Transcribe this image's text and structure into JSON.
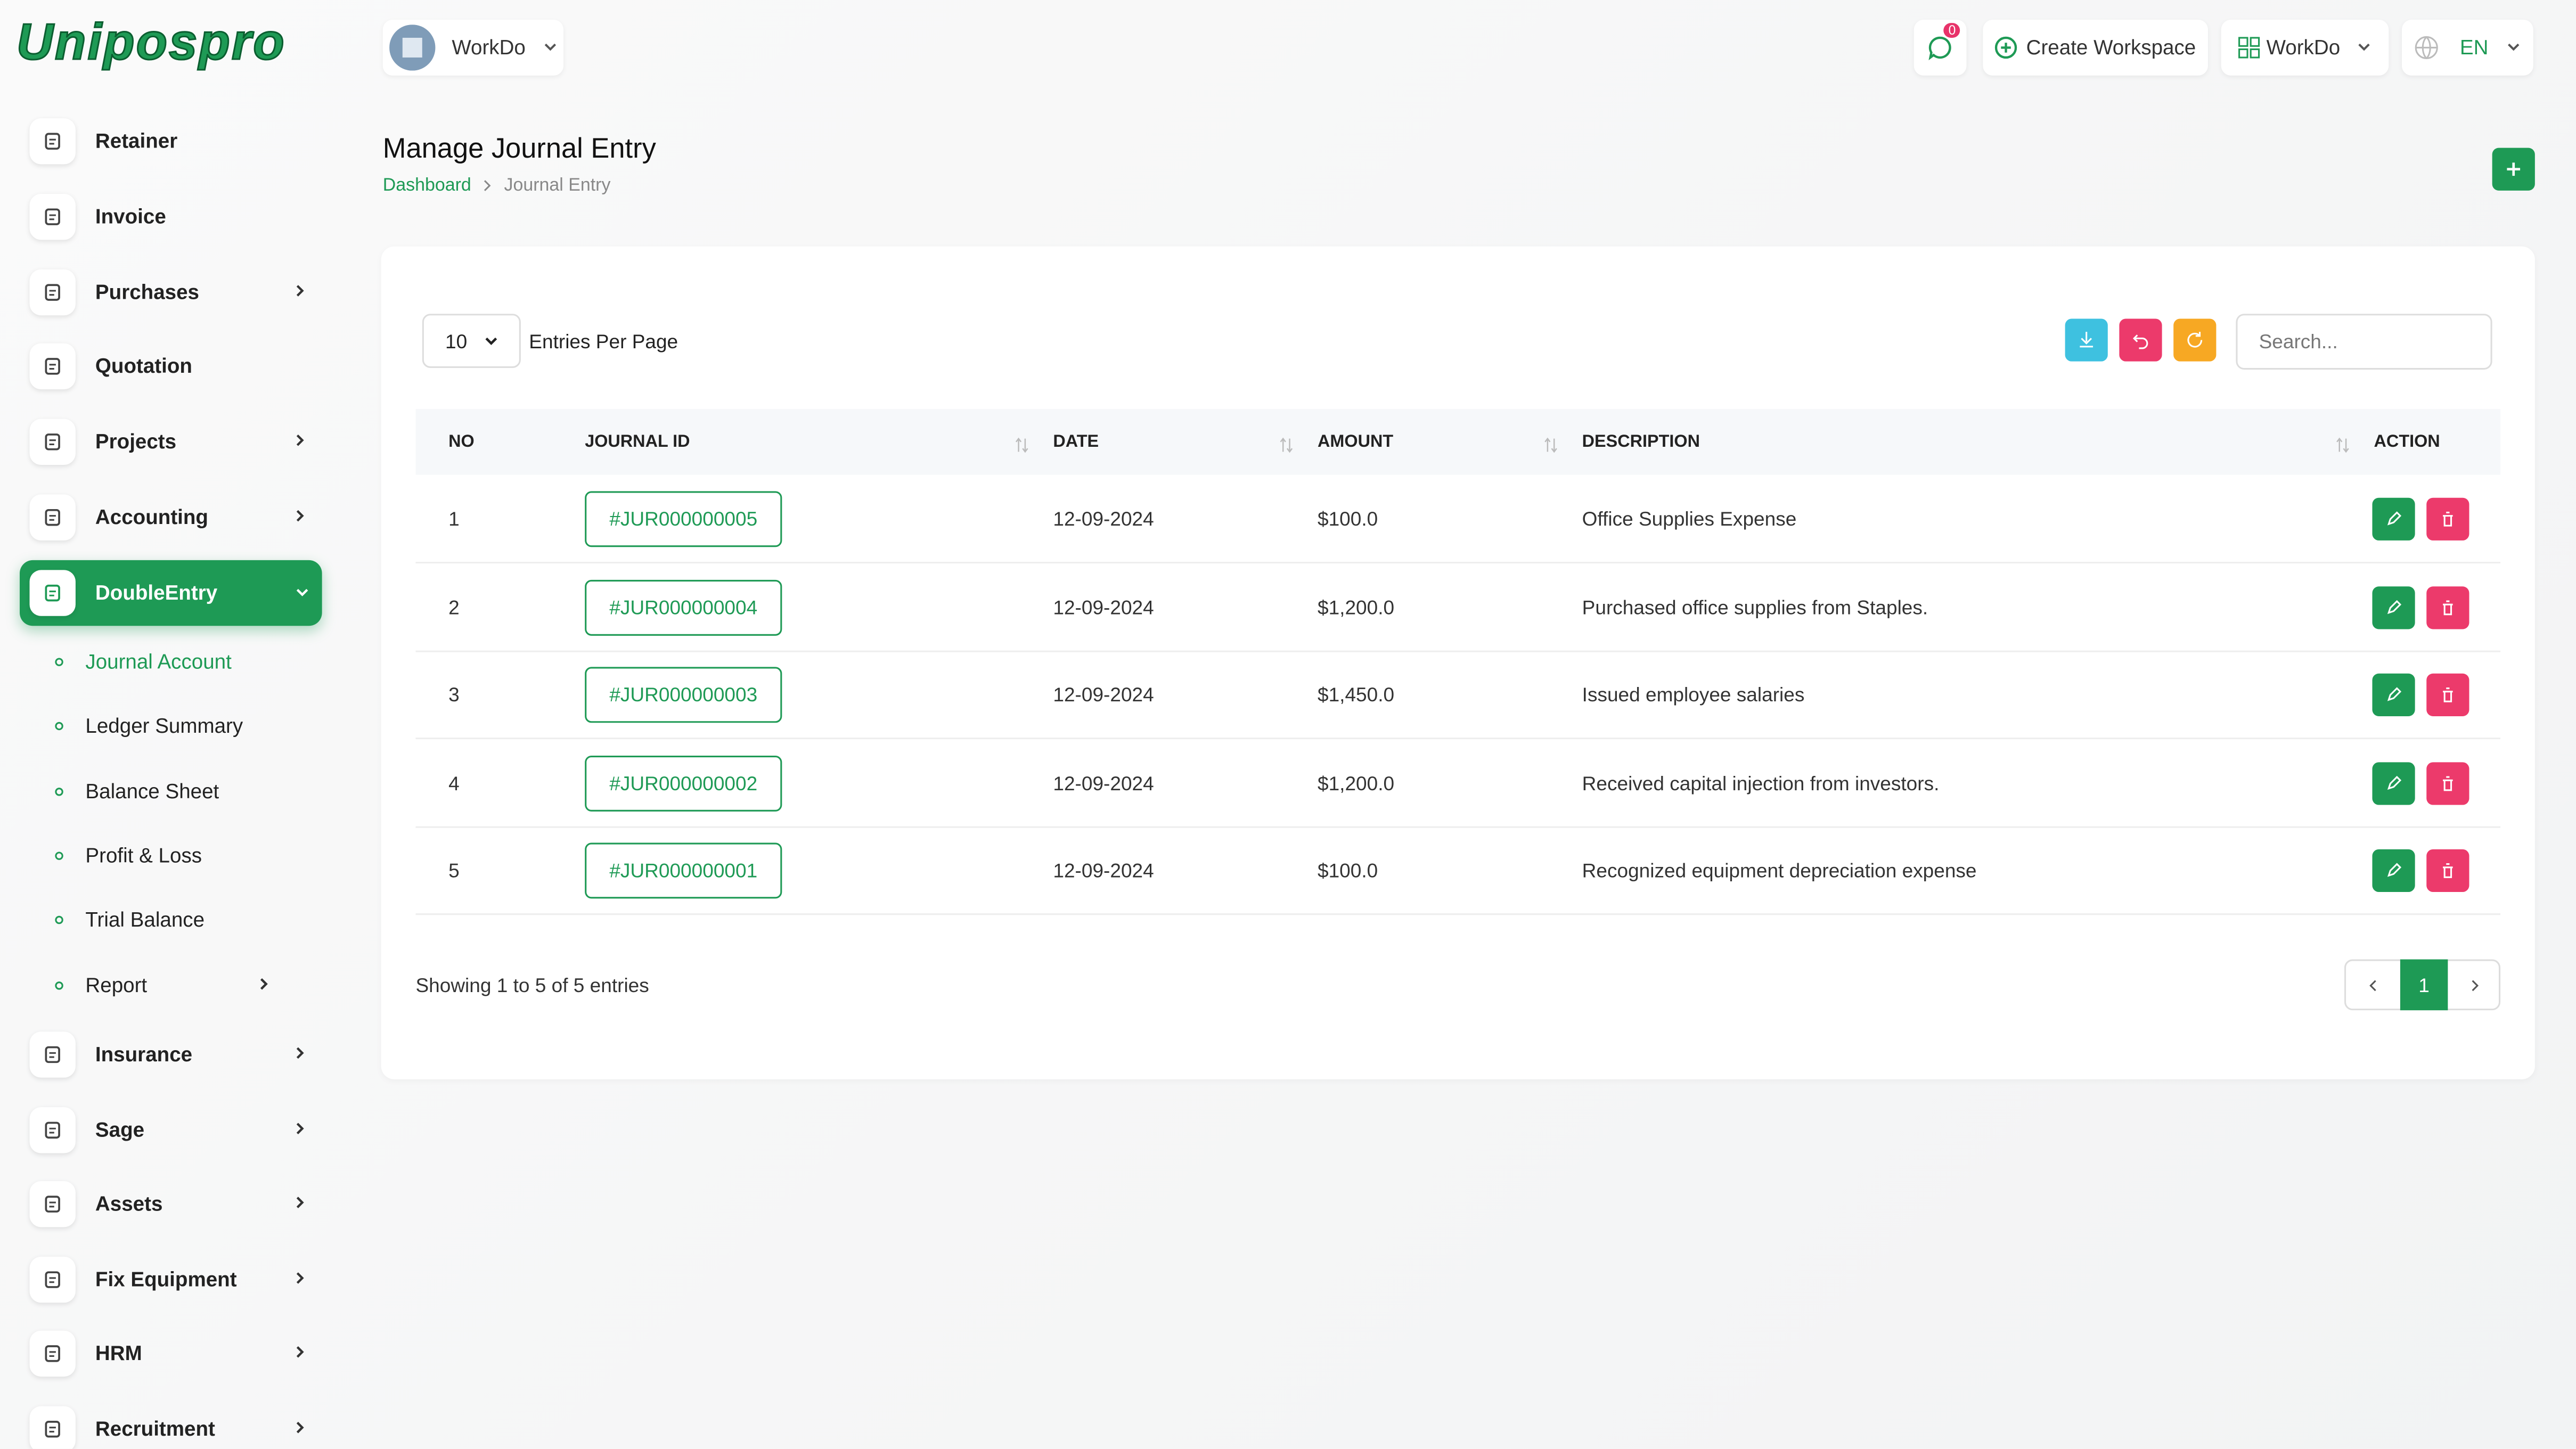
{
  "header": {
    "logo": "Unipospro",
    "workspace": "WorkDo",
    "notification_count": "0",
    "create_workspace": "Create Workspace",
    "workspace_menu": "WorkDo",
    "language": "EN"
  },
  "sidebar": {
    "menu_top": [
      "Retainer",
      "Invoice",
      "Purchases",
      "Quotation",
      "Projects",
      "Accounting"
    ],
    "active": "DoubleEntry",
    "submenu": [
      "Journal Account",
      "Ledger Summary",
      "Balance Sheet",
      "Profit & Loss",
      "Trial Balance",
      "Report"
    ],
    "menu_bottom": [
      "Insurance",
      "Sage",
      "Assets",
      "Fix Equipment",
      "HRM",
      "Recruitment"
    ]
  },
  "page": {
    "title": "Manage Journal Entry",
    "breadcrumb": [
      "Dashboard",
      "Journal Entry"
    ]
  },
  "table": {
    "entries_per_page": "10",
    "entries_label": "Entries Per Page",
    "search_placeholder": "Search...",
    "columns": [
      "NO",
      "JOURNAL ID",
      "DATE",
      "AMOUNT",
      "DESCRIPTION",
      "ACTION"
    ],
    "rows": [
      [
        "1",
        "#JUR000000005",
        "12-09-2024",
        "$100.0",
        "Office Supplies Expense"
      ],
      [
        "2",
        "#JUR000000004",
        "12-09-2024",
        "$1,200.0",
        "Purchased office supplies from Staples."
      ],
      [
        "3",
        "#JUR000000003",
        "12-09-2024",
        "$1,450.0",
        "Issued employee salaries"
      ],
      [
        "4",
        "#JUR000000002",
        "12-09-2024",
        "$1,200.0",
        "Received capital injection from investors."
      ],
      [
        "5",
        "#JUR000000001",
        "12-09-2024",
        "$100.0",
        "Recognized equipment depreciation expense"
      ]
    ],
    "summary": "Showing 1 to 5 of 5 entries",
    "current_page": "1"
  }
}
